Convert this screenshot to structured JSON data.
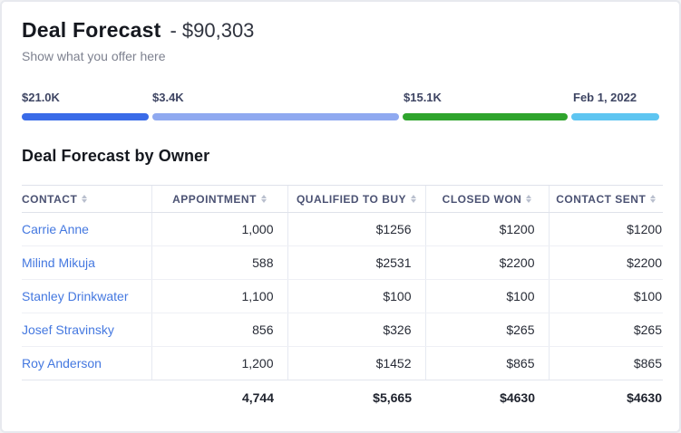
{
  "header": {
    "title": "Deal Forecast",
    "amount_text": "- $90,303",
    "subtitle": "Show what you offer here"
  },
  "progress": {
    "segments": [
      {
        "name": "segment-1",
        "label": "$21.0K",
        "color": "#3a6be8",
        "width_pct": 20.0
      },
      {
        "name": "segment-2",
        "label": "$3.4K",
        "color": "#8fa9f0",
        "width_pct": 38.8
      },
      {
        "name": "segment-3",
        "label": "$15.1K",
        "color": "#2fa42d",
        "width_pct": 25.9
      },
      {
        "name": "segment-4",
        "label": "Feb 1, 2022",
        "color": "#5ec5f1",
        "width_pct": 13.9
      }
    ]
  },
  "table": {
    "title": "Deal Forecast by Owner",
    "columns": [
      "Contact",
      "Appointment",
      "Qualified to Buy",
      "Closed Won",
      "Contact Sent"
    ],
    "rows": [
      {
        "contact": "Carrie Anne",
        "appointment": "1,000",
        "qualified_to_buy": "$1256",
        "closed_won": "$1200",
        "contact_sent": "$1200"
      },
      {
        "contact": "Milind Mikuja",
        "appointment": "588",
        "qualified_to_buy": "$2531",
        "closed_won": "$2200",
        "contact_sent": "$2200"
      },
      {
        "contact": "Stanley Drinkwater",
        "appointment": "1,100",
        "qualified_to_buy": "$100",
        "closed_won": "$100",
        "contact_sent": "$100"
      },
      {
        "contact": "Josef Stravinsky",
        "appointment": "856",
        "qualified_to_buy": "$326",
        "closed_won": "$265",
        "contact_sent": "$265"
      },
      {
        "contact": "Roy Anderson",
        "appointment": "1,200",
        "qualified_to_buy": "$1452",
        "closed_won": "$865",
        "contact_sent": "$865"
      }
    ],
    "totals": {
      "appointment": "4,744",
      "qualified_to_buy": "$5,665",
      "closed_won": "$4630",
      "contact_sent": "$4630"
    }
  }
}
